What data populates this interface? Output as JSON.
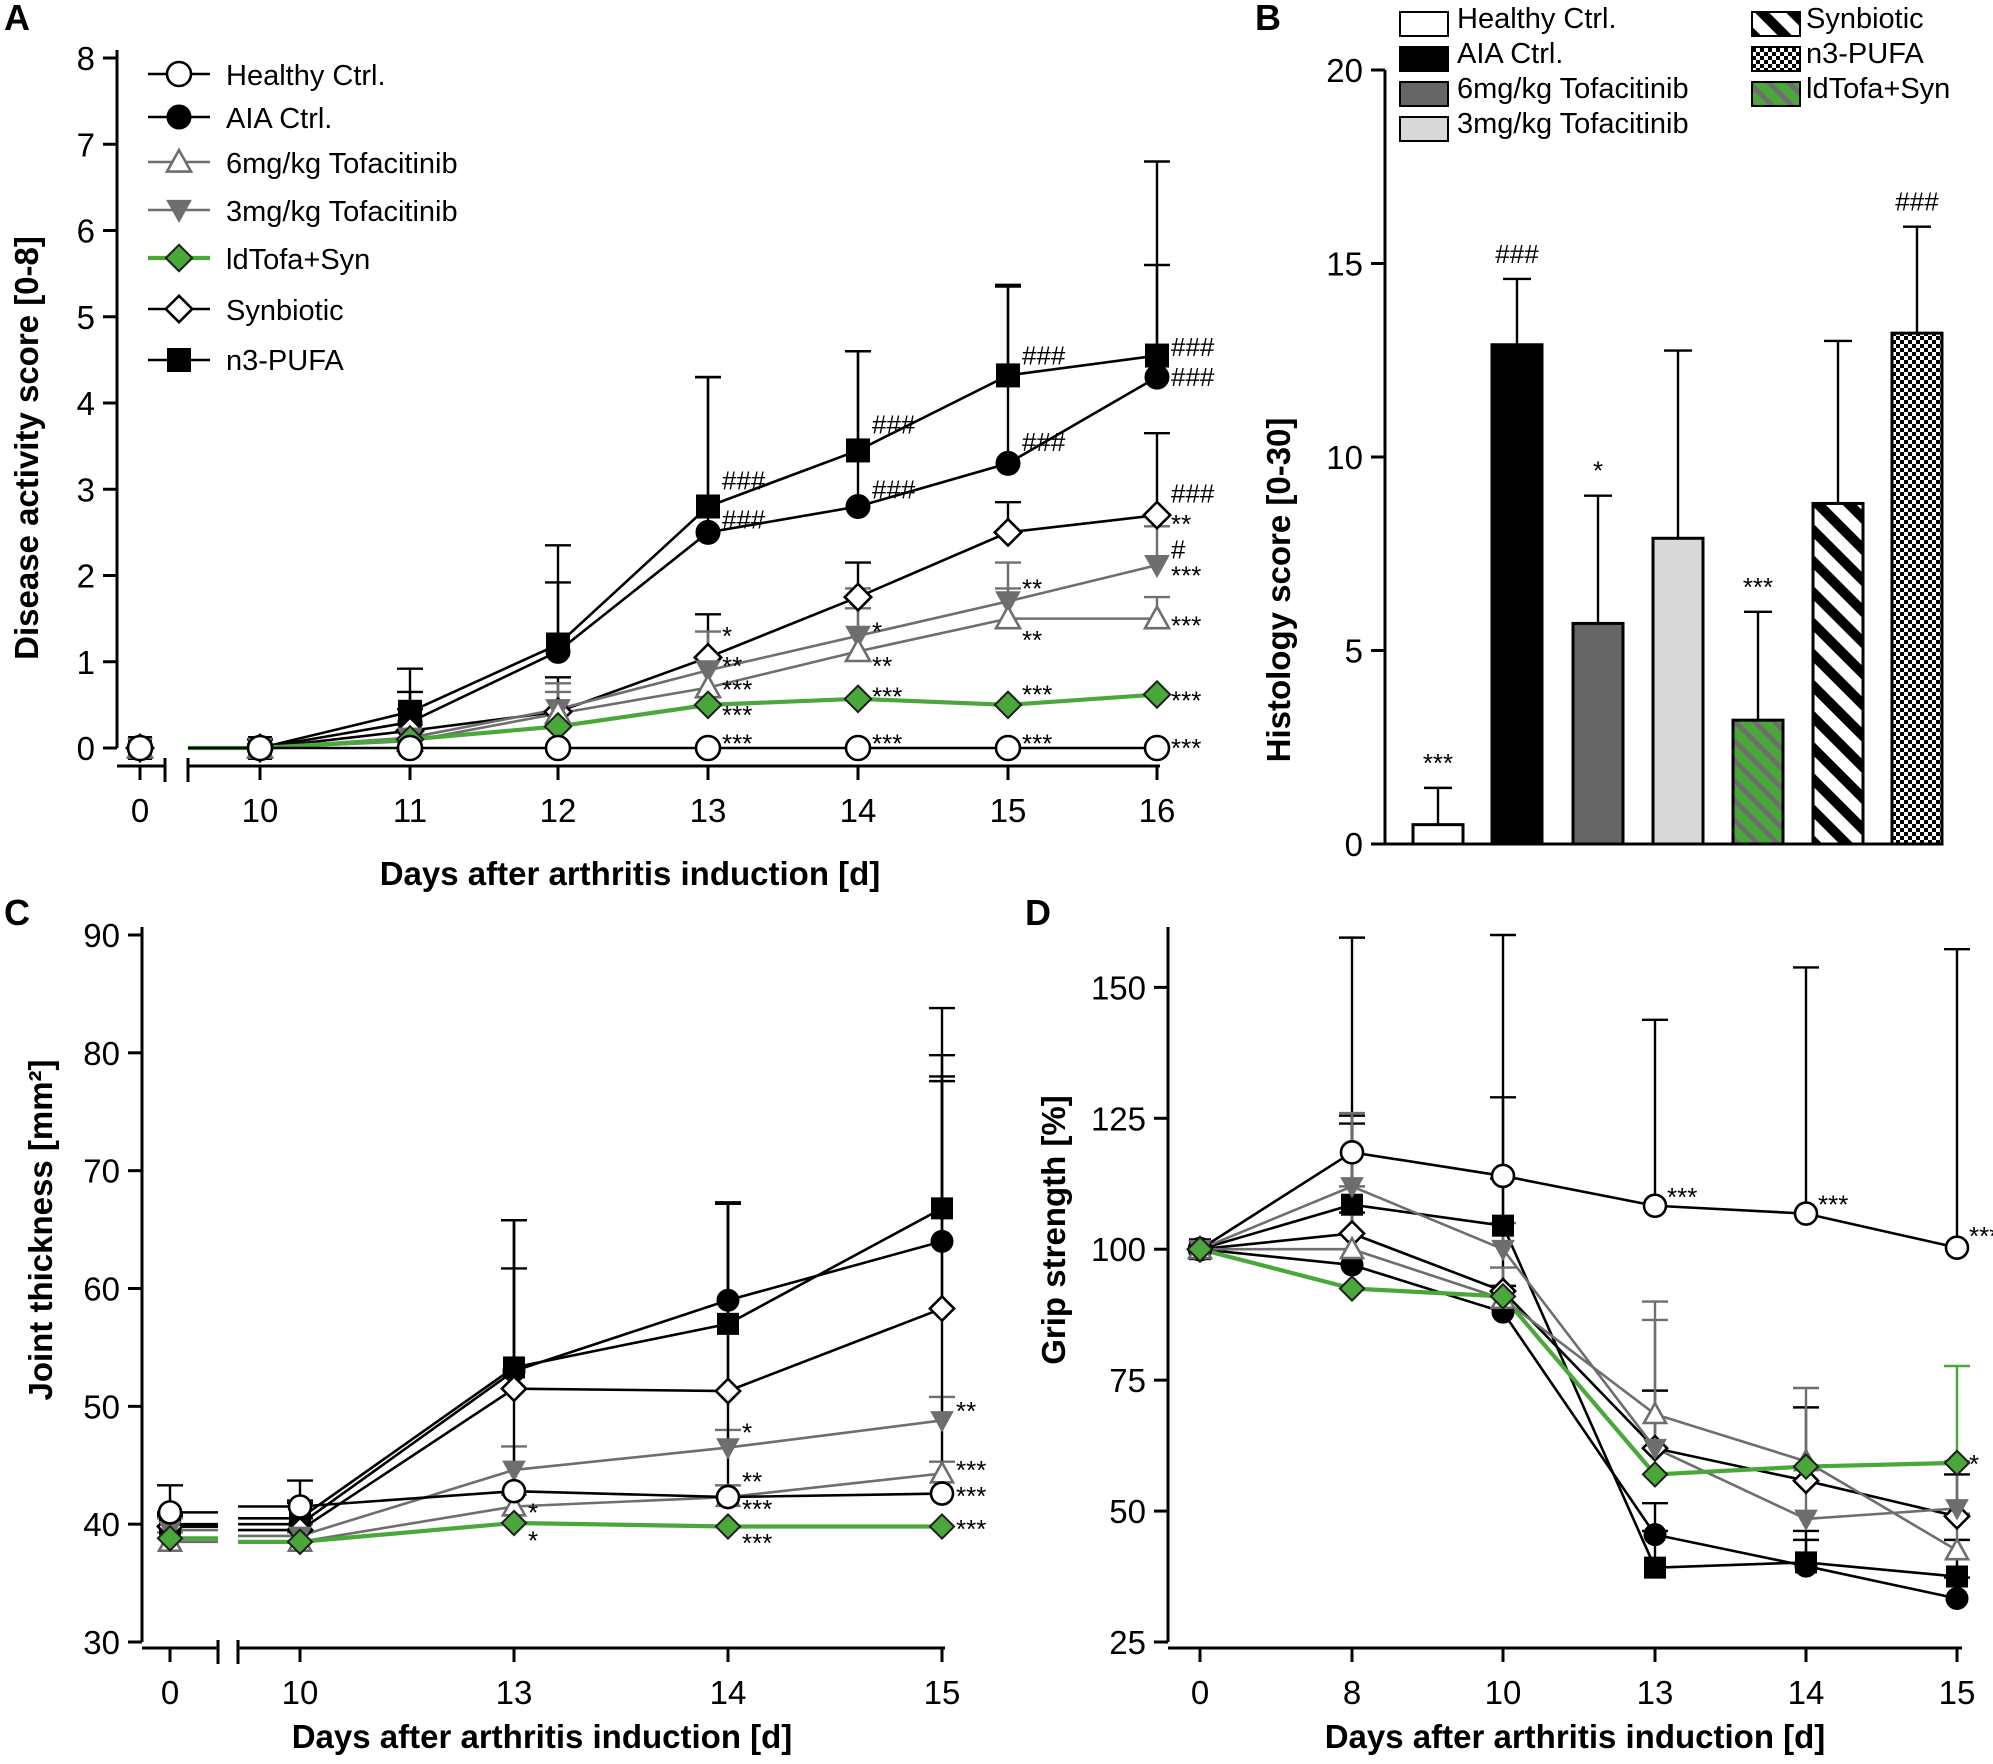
{
  "figure": {
    "labels": [
      "A",
      "B",
      "C",
      "D"
    ]
  },
  "colors": {
    "black": "#000000",
    "gray": "#6e6e6e",
    "lightgray": "#d8d8d8",
    "green": "#4aa83a"
  },
  "groups": [
    {
      "id": "hc",
      "name": "Healthy Ctrl.",
      "color": "#000000",
      "marker": "circle-open"
    },
    {
      "id": "aia",
      "name": "AIA Ctrl.",
      "color": "#000000",
      "marker": "circle-filled"
    },
    {
      "id": "t6",
      "name": "6mg/kg Tofacitinib",
      "color": "#6e6e6e",
      "marker": "triangle-up-open"
    },
    {
      "id": "t3",
      "name": "3mg/kg Tofacitinib",
      "color": "#6e6e6e",
      "marker": "triangle-down-filled"
    },
    {
      "id": "ld",
      "name": "ldTofa+Syn",
      "color": "#4aa83a",
      "marker": "diamond-green"
    },
    {
      "id": "syn",
      "name": "Synbiotic",
      "color": "#000000",
      "marker": "diamond-open"
    },
    {
      "id": "n3",
      "name": "n3-PUFA",
      "color": "#000000",
      "marker": "square-filled"
    }
  ],
  "chart_data": [
    {
      "panel": "A",
      "type": "line",
      "xlabel": "Days after arthritis induction [d]",
      "ylabel": "Disease activity score [0-8]",
      "ylim": [
        0,
        8
      ],
      "yticks": [
        0,
        1,
        2,
        3,
        4,
        5,
        6,
        7,
        8
      ],
      "x": [
        "0",
        "10",
        "11",
        "12",
        "13",
        "14",
        "15",
        "16"
      ],
      "legend_order": [
        "hc",
        "aia",
        "t6",
        "t3",
        "ld",
        "syn",
        "n3"
      ],
      "series": [
        {
          "id": "n3",
          "values": [
            0,
            0,
            0.42,
            1.2,
            2.8,
            3.45,
            4.32,
            4.55
          ],
          "err": [
            0,
            0.1,
            0.5,
            1.15,
            1.5,
            1.15,
            1.05,
            2.25
          ]
        },
        {
          "id": "aia",
          "values": [
            0,
            0,
            0.3,
            1.12,
            2.5,
            2.8,
            3.3,
            4.3
          ],
          "err": [
            0,
            0.1,
            0.35,
            0.8,
            1.8,
            1.8,
            2.05,
            1.3
          ]
        },
        {
          "id": "syn",
          "values": [
            0,
            0,
            0.2,
            0.42,
            1.05,
            1.75,
            2.5,
            2.7
          ],
          "err": [
            0,
            0.05,
            0.25,
            0.4,
            0.5,
            0.4,
            0.35,
            0.95
          ]
        },
        {
          "id": "t3",
          "values": [
            0,
            0,
            0.12,
            0.45,
            0.9,
            1.3,
            1.7,
            2.12
          ],
          "err": [
            0,
            0.05,
            0.15,
            0.3,
            0.45,
            0.55,
            0.45,
            0.45
          ]
        },
        {
          "id": "t6",
          "values": [
            0,
            0,
            0.08,
            0.4,
            0.7,
            1.12,
            1.5,
            1.5
          ],
          "err": [
            0,
            0.05,
            0.1,
            0.25,
            0.35,
            0.5,
            0.35,
            0.25
          ]
        },
        {
          "id": "ld",
          "values": [
            0,
            0,
            0.1,
            0.25,
            0.5,
            0.57,
            0.5,
            0.62
          ],
          "err": [
            0,
            0,
            0,
            0,
            0,
            0,
            0,
            0
          ]
        },
        {
          "id": "hc",
          "values": [
            0,
            0,
            0,
            0,
            0,
            0,
            0,
            0
          ],
          "err": [
            0,
            0,
            0,
            0,
            0,
            0,
            0,
            0
          ]
        }
      ],
      "annotations": [
        {
          "text": "###",
          "xi": 4,
          "y": 3.1
        },
        {
          "text": "###",
          "xi": 4,
          "y": 2.65
        },
        {
          "text": "*",
          "xi": 4,
          "y": 1.3
        },
        {
          "text": "**",
          "xi": 4,
          "y": 0.95
        },
        {
          "text": "***",
          "xi": 4,
          "y": 0.68
        },
        {
          "text": "***",
          "xi": 4,
          "y": 0.38
        },
        {
          "text": "***",
          "xi": 4,
          "y": 0.05
        },
        {
          "text": "###",
          "xi": 5,
          "y": 3.75
        },
        {
          "text": "###",
          "xi": 5,
          "y": 3.0
        },
        {
          "text": "*",
          "xi": 5,
          "y": 1.35
        },
        {
          "text": "**",
          "xi": 5,
          "y": 0.95
        },
        {
          "text": "***",
          "xi": 5,
          "y": 0.6
        },
        {
          "text": "***",
          "xi": 5,
          "y": 0.05
        },
        {
          "text": "###",
          "xi": 6,
          "y": 4.55
        },
        {
          "text": "###",
          "xi": 6,
          "y": 3.55
        },
        {
          "text": "**",
          "xi": 6,
          "y": 1.85
        },
        {
          "text": "**",
          "xi": 6,
          "y": 1.25
        },
        {
          "text": "***",
          "xi": 6,
          "y": 0.62
        },
        {
          "text": "***",
          "xi": 6,
          "y": 0.05
        },
        {
          "text": "###",
          "xi": 7,
          "y": 4.65
        },
        {
          "text": "###",
          "xi": 7,
          "y": 4.3
        },
        {
          "text": "###",
          "xi": 7,
          "y": 2.95
        },
        {
          "text": "**",
          "xi": 7,
          "y": 2.6
        },
        {
          "text": "#",
          "xi": 7,
          "y": 2.3
        },
        {
          "text": "***",
          "xi": 7,
          "y": 2.0
        },
        {
          "text": "***",
          "xi": 7,
          "y": 1.42
        },
        {
          "text": "***",
          "xi": 7,
          "y": 0.55
        },
        {
          "text": "***",
          "xi": 7,
          "y": 0.0
        }
      ]
    },
    {
      "panel": "B",
      "type": "bar",
      "ylabel": "Histology score [0-30]",
      "ylim": [
        0,
        20
      ],
      "yticks": [
        0,
        5,
        10,
        15,
        20
      ],
      "legend_col1": [
        "Healthy Ctrl.",
        "AIA Ctrl.",
        "6mg/kg Tofacitinib",
        "3mg/kg Tofacitinib"
      ],
      "legend_col2": [
        "Synbiotic",
        "n3-PUFA",
        "ldTofa+Syn"
      ],
      "bars": [
        {
          "name": "Healthy Ctrl.",
          "value": 0.5,
          "err": 0.95,
          "fill": "white",
          "annotation": "***"
        },
        {
          "name": "AIA Ctrl.",
          "value": 12.9,
          "err": 1.7,
          "fill": "black",
          "annotation": "###"
        },
        {
          "name": "6mg/kg Tofacitinib",
          "value": 5.7,
          "err": 3.3,
          "fill": "darkgray",
          "annotation": "*"
        },
        {
          "name": "3mg/kg Tofacitinib",
          "value": 7.9,
          "err": 4.85,
          "fill": "lightgray",
          "annotation": ""
        },
        {
          "name": "ldTofa+Syn",
          "value": 3.2,
          "err": 2.8,
          "fill": "green-stripes",
          "annotation": "***"
        },
        {
          "name": "Synbiotic",
          "value": 8.8,
          "err": 4.2,
          "fill": "diagonal-stripes",
          "annotation": ""
        },
        {
          "name": "n3-PUFA",
          "value": 13.2,
          "err": 2.75,
          "fill": "checker",
          "annotation": "###"
        }
      ]
    },
    {
      "panel": "C",
      "type": "line",
      "xlabel": "Days after arthritis induction [d]",
      "ylabel": "Joint thickness  [mm²]",
      "ylim": [
        30,
        90
      ],
      "yticks": [
        30,
        40,
        50,
        60,
        70,
        80,
        90
      ],
      "x": [
        "0",
        "10",
        "13",
        "14",
        "15"
      ],
      "series": [
        {
          "id": "n3",
          "values": [
            40,
            40.5,
            53.3,
            57,
            66.8
          ],
          "err": [
            1,
            1.5,
            12.5,
            10.2,
            17
          ]
        },
        {
          "id": "aia",
          "values": [
            39.8,
            40,
            53,
            59,
            64
          ],
          "err": [
            1,
            1.8,
            8.7,
            8.2,
            14
          ]
        },
        {
          "id": "syn",
          "values": [
            39.8,
            39.5,
            51.5,
            51.3,
            58.3
          ],
          "err": [
            0.8,
            1,
            14.3,
            16,
            21.5
          ]
        },
        {
          "id": "t3",
          "values": [
            39.5,
            39,
            44.6,
            46.5,
            48.8
          ],
          "err": [
            1,
            1,
            2,
            1.5,
            2
          ]
        },
        {
          "id": "t6",
          "values": [
            38.5,
            38.5,
            41.5,
            42.3,
            44.3
          ],
          "err": [
            0.8,
            0.8,
            1,
            1,
            1
          ]
        },
        {
          "id": "ld",
          "values": [
            38.8,
            38.5,
            40.1,
            39.8,
            39.8
          ],
          "err": [
            0,
            0,
            0,
            0,
            0
          ]
        },
        {
          "id": "hc",
          "values": [
            41,
            41.5,
            42.8,
            42.3,
            42.6
          ],
          "err": [
            2.3,
            2.2,
            23,
            25,
            35
          ]
        }
      ],
      "annotations": [
        {
          "text": "*",
          "xi": 2,
          "y": 41
        },
        {
          "text": "*",
          "xi": 2,
          "y": 38.6
        },
        {
          "text": "*",
          "xi": 3,
          "y": 47.8
        },
        {
          "text": "**",
          "xi": 3,
          "y": 43.6
        },
        {
          "text": "***",
          "xi": 3,
          "y": 41.3
        },
        {
          "text": "***",
          "xi": 3,
          "y": 38.4
        },
        {
          "text": "**",
          "xi": 4,
          "y": 49.6
        },
        {
          "text": "***",
          "xi": 4,
          "y": 44.6
        },
        {
          "text": "***",
          "xi": 4,
          "y": 42.4
        },
        {
          "text": "***",
          "xi": 4,
          "y": 39.6
        }
      ]
    },
    {
      "panel": "D",
      "type": "line",
      "xlabel": "Days after arthritis induction [d]",
      "ylabel": "Grip strength [%]",
      "ylim": [
        25,
        160
      ],
      "yticks": [
        25,
        50,
        75,
        100,
        125,
        150
      ],
      "x": [
        "0",
        "8",
        "10",
        "13",
        "14",
        "15"
      ],
      "series": [
        {
          "id": "hc",
          "values": [
            100,
            118.5,
            114,
            108.3,
            106.8,
            100.3
          ],
          "err": [
            0,
            41,
            46,
            35.5,
            47,
            57
          ]
        },
        {
          "id": "n3",
          "values": [
            100,
            108.5,
            104.5,
            39.2,
            40.2,
            37.5
          ],
          "err": [
            0,
            17,
            9,
            7,
            6,
            7
          ]
        },
        {
          "id": "aia",
          "values": [
            100,
            97,
            88,
            45.5,
            39.5,
            33.3
          ],
          "err": [
            0,
            10,
            5,
            6,
            5,
            4
          ]
        },
        {
          "id": "syn",
          "values": [
            100,
            103,
            92,
            62,
            55.8,
            49
          ],
          "err": [
            0,
            21,
            37,
            11,
            14,
            8
          ]
        },
        {
          "id": "t3",
          "values": [
            100,
            112,
            100,
            62,
            48.5,
            50.5
          ],
          "err": [
            0,
            14,
            5,
            24.5,
            10,
            9
          ]
        },
        {
          "id": "t6",
          "values": [
            100,
            100,
            90.5,
            68.5,
            59.5,
            42.5
          ],
          "err": [
            0,
            12,
            6,
            21.5,
            14,
            7
          ]
        },
        {
          "id": "ld",
          "values": [
            100,
            92.5,
            91,
            57,
            58.5,
            59.2
          ],
          "err": [
            0,
            0,
            0,
            0,
            0,
            18.5
          ]
        }
      ],
      "annotations": [
        {
          "text": "***",
          "xi": 3,
          "y": 110
        },
        {
          "text": "***",
          "xi": 4,
          "y": 108.5
        },
        {
          "text": "***",
          "xi": 5,
          "y": 102.5
        },
        {
          "text": "*",
          "xi": 5,
          "y": 59
        }
      ]
    }
  ]
}
